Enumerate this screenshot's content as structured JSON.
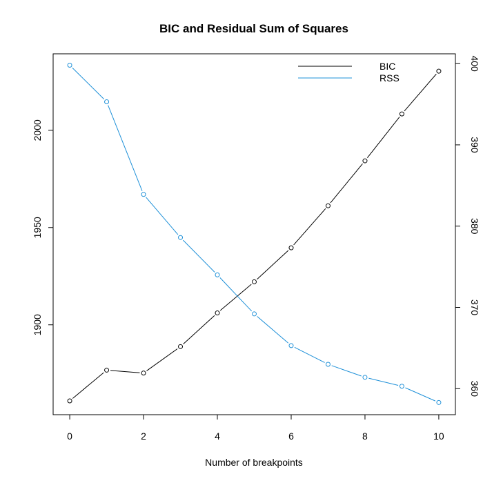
{
  "chart_data": {
    "type": "line",
    "title": "BIC and Residual Sum of Squares",
    "xlabel": "Number of breakpoints",
    "ylabel_left": "",
    "ylabel_right": "",
    "xlim": [
      -0.45,
      10.45
    ],
    "x_ticks": [
      0,
      2,
      4,
      6,
      8,
      10
    ],
    "y_left_lim": [
      1853.8,
      2039.3
    ],
    "y_left_ticks": [
      1900,
      1950,
      2000
    ],
    "y_right_lim": [
      356.8,
      401.2
    ],
    "y_right_ticks": [
      360,
      370,
      380,
      390,
      400
    ],
    "grid": false,
    "legend": "top-right",
    "x": [
      0,
      1,
      2,
      3,
      4,
      5,
      6,
      7,
      8,
      9,
      10
    ],
    "series": [
      {
        "name": "BIC",
        "axis": "left",
        "color": "#000000",
        "values": [
          1860.9,
          1876.7,
          1875.2,
          1888.8,
          1906.1,
          1922.1,
          1939.6,
          1961.2,
          1984.3,
          2008.4,
          2030.4
        ]
      },
      {
        "name": "RSS",
        "axis": "right",
        "color": "#1e90d8",
        "values": [
          399.8,
          395.3,
          383.9,
          378.6,
          374.0,
          369.2,
          365.3,
          363.0,
          361.4,
          360.3,
          358.3
        ]
      }
    ]
  }
}
